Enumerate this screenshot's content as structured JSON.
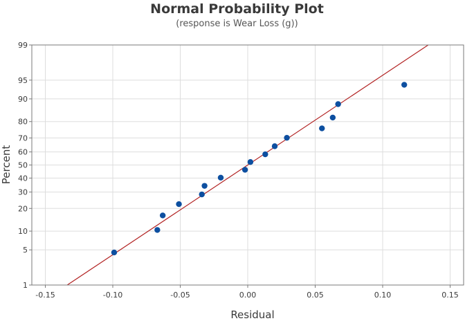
{
  "chart_data": {
    "type": "scatter",
    "title": "Normal Probability Plot",
    "subtitle": "(response is Wear Loss (g))",
    "xlabel": "Residual",
    "ylabel": "Percent",
    "xlim": [
      -0.16,
      0.16
    ],
    "ylim_percent": [
      1,
      99
    ],
    "y_scale": "normal-probability",
    "grid": true,
    "x_ticks": [
      -0.15,
      -0.1,
      -0.05,
      0.0,
      0.05,
      0.1,
      0.15
    ],
    "x_tick_labels": [
      "-0.15",
      "-0.10",
      "-0.05",
      "0.00",
      "0.05",
      "0.10",
      "0.15"
    ],
    "y_ticks": [
      1,
      5,
      10,
      20,
      30,
      40,
      50,
      60,
      70,
      80,
      90,
      95,
      99
    ],
    "y_tick_labels": [
      "1",
      "5",
      "10",
      "20",
      "30",
      "40",
      "50",
      "60",
      "70",
      "80",
      "90",
      "95",
      "99"
    ],
    "points": [
      {
        "x": -0.099,
        "y": 4.5
      },
      {
        "x": -0.067,
        "y": 10.4
      },
      {
        "x": -0.063,
        "y": 16.4
      },
      {
        "x": -0.051,
        "y": 22.4
      },
      {
        "x": -0.034,
        "y": 28.4
      },
      {
        "x": -0.032,
        "y": 34.3
      },
      {
        "x": -0.02,
        "y": 40.3
      },
      {
        "x": -0.002,
        "y": 46.3
      },
      {
        "x": 0.002,
        "y": 52.3
      },
      {
        "x": 0.013,
        "y": 58.2
      },
      {
        "x": 0.02,
        "y": 64.2
      },
      {
        "x": 0.029,
        "y": 70.1
      },
      {
        "x": 0.055,
        "y": 76.1
      },
      {
        "x": 0.063,
        "y": 82.1
      },
      {
        "x": 0.067,
        "y": 88.1
      },
      {
        "x": 0.116,
        "y": 94.0
      }
    ],
    "fit_line": {
      "mean": 0.0,
      "sd": 0.0575,
      "color": "#b22222"
    },
    "point_color": "#0d4fa0",
    "grid_color": "#dddddd",
    "axis_color": "#7a7a7a"
  }
}
